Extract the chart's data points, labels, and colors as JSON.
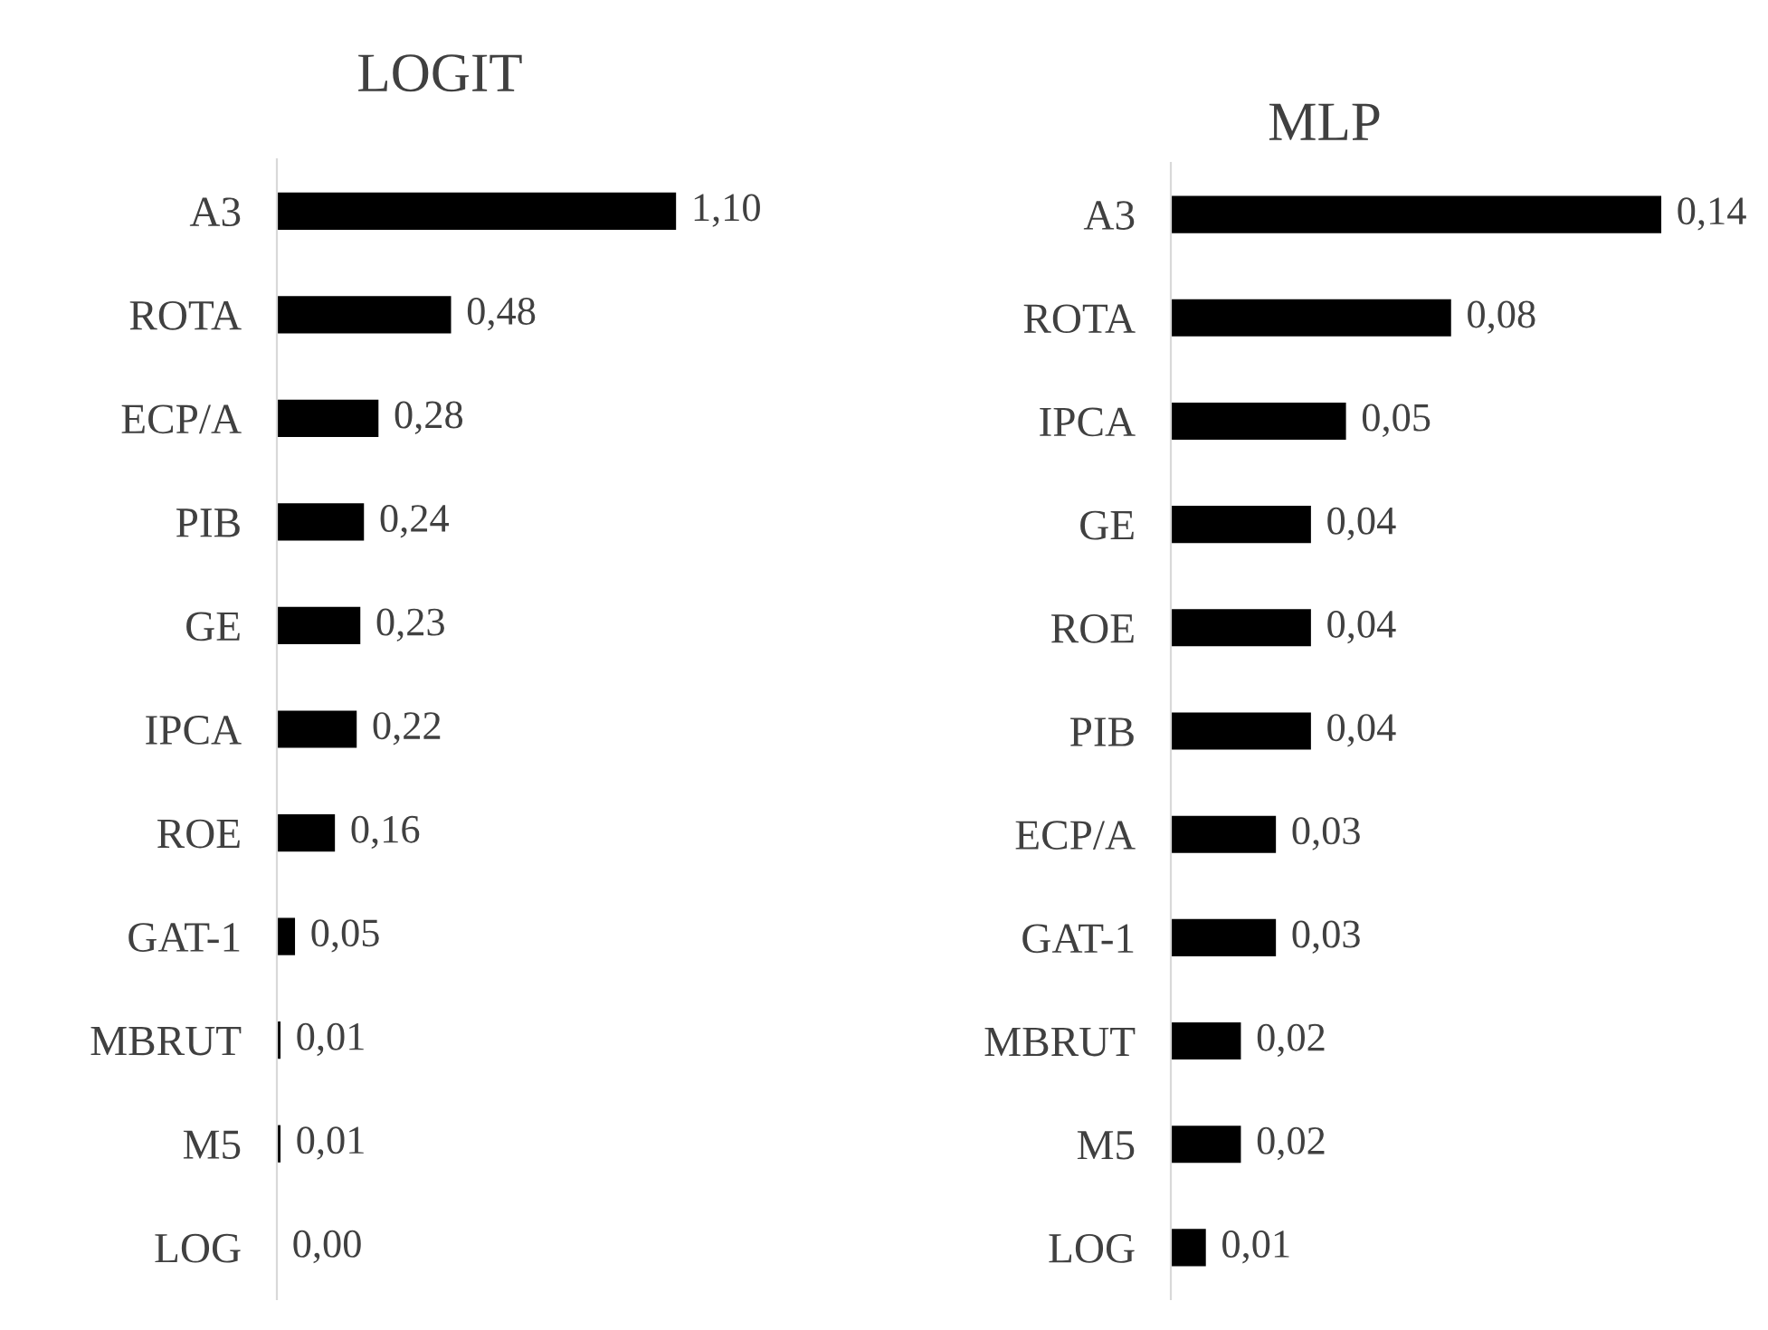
{
  "chart_data": [
    {
      "type": "bar",
      "orientation": "horizontal",
      "title": "LOGIT",
      "categories": [
        "A3",
        "ROTA",
        "ECP/A",
        "PIB",
        "GE",
        "IPCA",
        "ROE",
        "GAT-1",
        "MBRUT",
        "M5",
        "LOG"
      ],
      "values": [
        1.1,
        0.48,
        0.28,
        0.24,
        0.23,
        0.22,
        0.16,
        0.05,
        0.01,
        0.01,
        0.0
      ],
      "value_labels": [
        "1,10",
        "0,48",
        "0,28",
        "0,24",
        "0,23",
        "0,22",
        "0,16",
        "0,05",
        "0,01",
        "0,01",
        "0,00"
      ],
      "color": "#000000",
      "tick_labels": "y",
      "grid": false,
      "legend": false
    },
    {
      "type": "bar",
      "orientation": "horizontal",
      "title": "MLP",
      "categories": [
        "A3",
        "ROTA",
        "IPCA",
        "GE",
        "ROE",
        "PIB",
        "ECP/A",
        "GAT-1",
        "MBRUT",
        "M5",
        "LOG"
      ],
      "values": [
        0.14,
        0.08,
        0.05,
        0.04,
        0.04,
        0.04,
        0.03,
        0.03,
        0.02,
        0.02,
        0.01
      ],
      "value_labels": [
        "0,14",
        "0,08",
        "0,05",
        "0,04",
        "0,04",
        "0,04",
        "0,03",
        "0,03",
        "0,02",
        "0,02",
        "0,01"
      ],
      "color": "#000000",
      "tick_labels": "y",
      "grid": false,
      "legend": false
    }
  ]
}
